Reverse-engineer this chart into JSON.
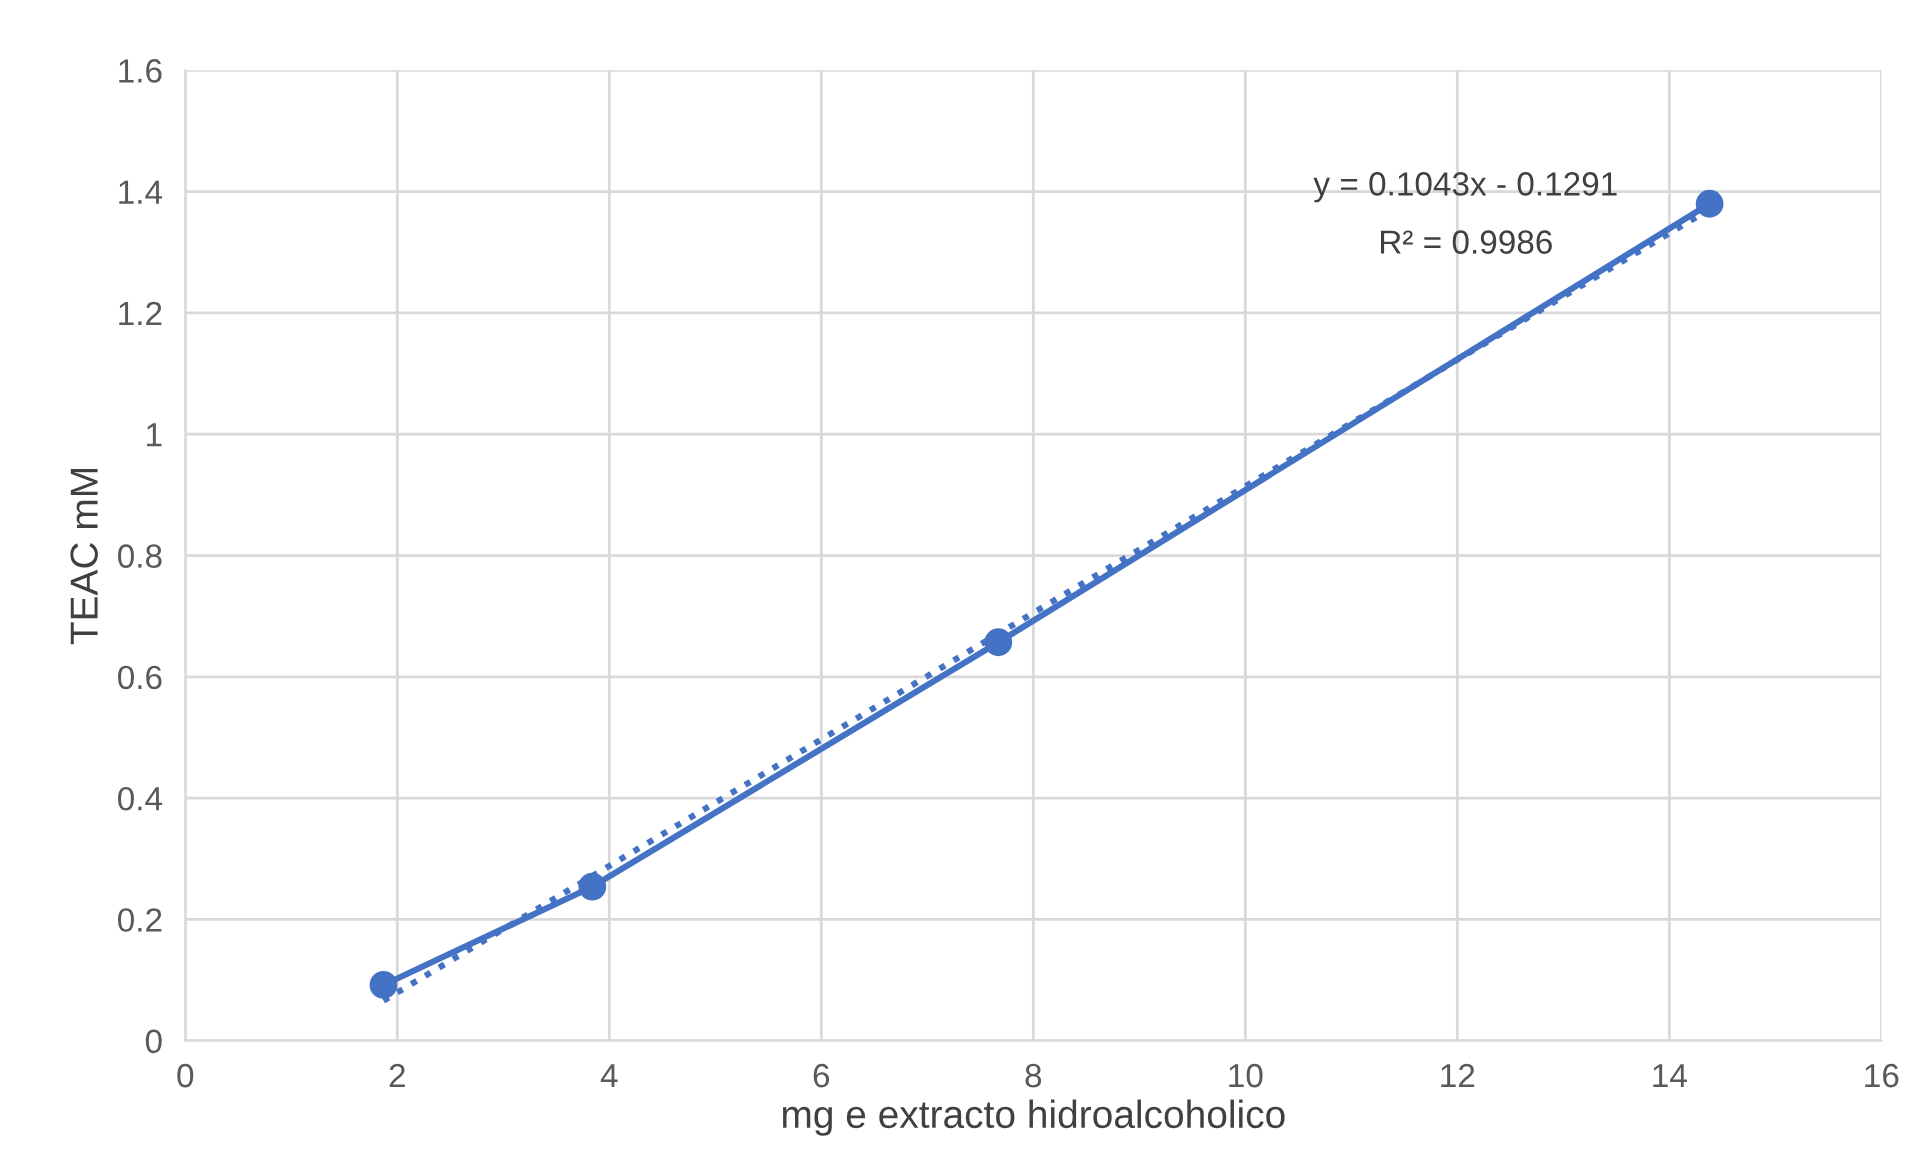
{
  "chart_data": {
    "type": "line",
    "xlabel": "mg e extracto hidroalcoholico",
    "ylabel": "TEAC mM",
    "xlim": [
      0,
      16
    ],
    "xticks": [
      0,
      2,
      4,
      6,
      8,
      10,
      12,
      14,
      16
    ],
    "ylim": [
      0,
      1.6
    ],
    "yticks": [
      0,
      0.2,
      0.4,
      0.6,
      0.8,
      1,
      1.2,
      1.4,
      1.6
    ],
    "grid": true,
    "legend": false,
    "series": [
      {
        "color": "#4472c4",
        "marker": "circle",
        "line_style": "solid",
        "x": [
          1.87,
          3.84,
          7.67,
          14.38
        ],
        "values": [
          0.092,
          0.254,
          0.657,
          1.38
        ]
      },
      {
        "type": "line",
        "color": "#4472c4",
        "marker": "none",
        "line_style": "dotted",
        "x": [
          1.87,
          14.38
        ],
        "values": [
          0.066,
          1.371
        ]
      }
    ],
    "annotations": [
      "y = 0.1043x - 0.1291",
      "R² = 0.9986"
    ]
  }
}
